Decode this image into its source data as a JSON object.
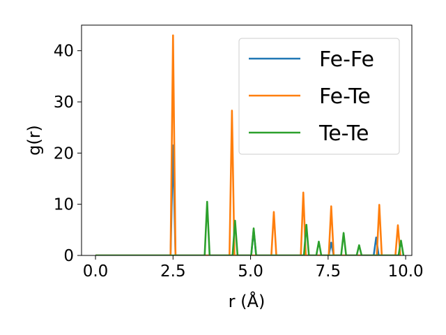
{
  "chart_data": {
    "type": "line",
    "title": "",
    "xlabel": "r (Å)",
    "ylabel": "g(r)",
    "xlim": [
      -0.45,
      10.2
    ],
    "ylim": [
      0,
      45
    ],
    "xticks": [
      0.0,
      2.5,
      5.0,
      7.5,
      10.0
    ],
    "xtick_labels": [
      "0.0",
      "2.5",
      "5.0",
      "7.5",
      "10.0"
    ],
    "yticks": [
      0,
      10,
      20,
      30,
      40
    ],
    "ytick_labels": [
      "0",
      "10",
      "20",
      "30",
      "40"
    ],
    "legend_position": "top-right",
    "grid": false,
    "x_range": [
      0.0,
      9.85
    ],
    "peak_half_width": 0.08,
    "series": [
      {
        "name": "Fe-Fe",
        "color": "#1f77b4",
        "peaks": [
          [
            2.5,
            21.5
          ],
          [
            5.1,
            5.0
          ],
          [
            7.6,
            2.5
          ],
          [
            9.05,
            3.5
          ]
        ]
      },
      {
        "name": "Fe-Te",
        "color": "#ff7f0e",
        "peaks": [
          [
            2.5,
            43.0
          ],
          [
            4.4,
            28.3
          ],
          [
            5.75,
            8.5
          ],
          [
            6.7,
            12.3
          ],
          [
            7.6,
            9.6
          ],
          [
            9.15,
            9.9
          ],
          [
            9.75,
            5.9
          ]
        ]
      },
      {
        "name": "Te-Te",
        "color": "#2ca02c",
        "peaks": [
          [
            3.6,
            10.5
          ],
          [
            4.5,
            6.8
          ],
          [
            5.1,
            5.3
          ],
          [
            6.8,
            6.0
          ],
          [
            7.2,
            2.7
          ],
          [
            8.0,
            4.4
          ],
          [
            8.5,
            2.0
          ],
          [
            9.85,
            2.9
          ]
        ]
      }
    ]
  }
}
